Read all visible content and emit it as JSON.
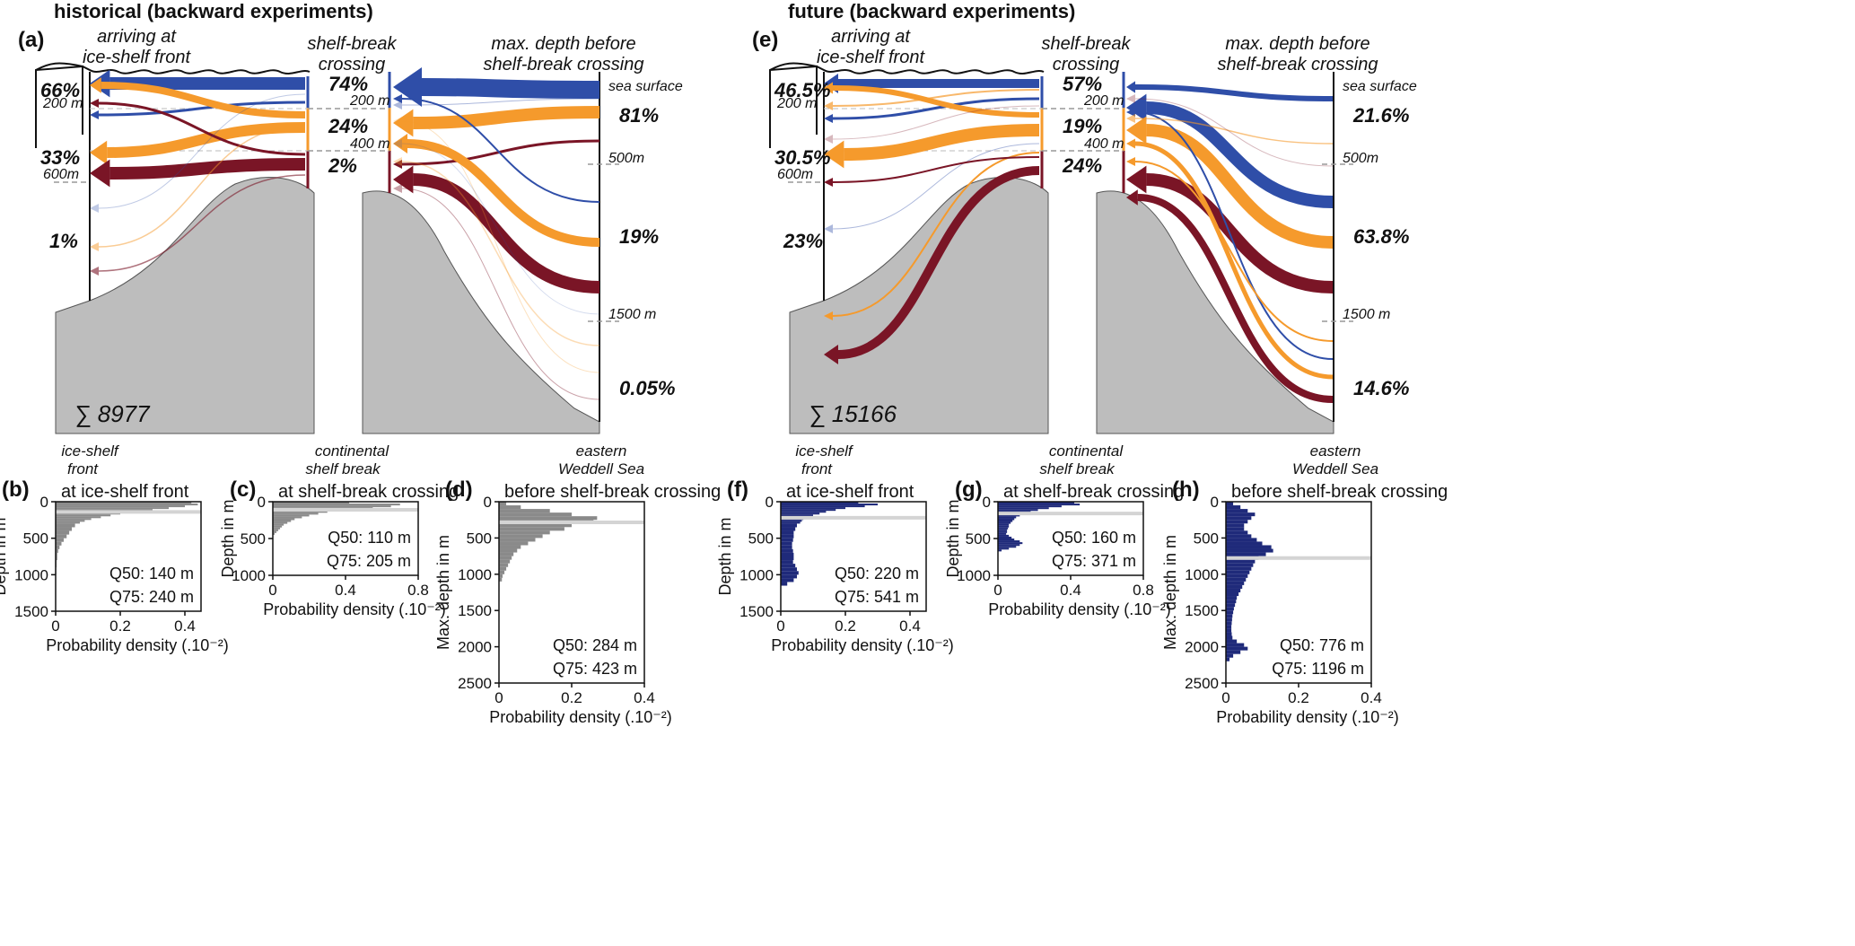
{
  "figure": {
    "columns": [
      {
        "title": "historical (backward experiments)",
        "schematic": {
          "label": "(a)",
          "headers": {
            "front": [
              "arriving at",
              "ice-shelf front"
            ],
            "break": [
              "shelf-break",
              "crossing"
            ],
            "max": [
              "max. depth before",
              "shelf-break crossing"
            ]
          },
          "front_pcts": [
            "66%",
            "33%",
            "1%"
          ],
          "break_pcts": [
            "74%",
            "24%",
            "2%"
          ],
          "max_pcts": [
            "81%",
            "19%",
            "0.05%"
          ],
          "front_depths": [
            "200 m",
            "600m"
          ],
          "break_depths": [
            "200 m",
            "400 m"
          ],
          "max_depths": [
            "sea surface",
            "500m",
            "1500 m"
          ],
          "sum": "∑ 8977",
          "locations": {
            "front": [
              "ice-shelf",
              "front"
            ],
            "break": [
              "continental",
              "shelf break"
            ],
            "sea": [
              "eastern",
              "Weddell Sea"
            ]
          }
        }
      },
      {
        "title": "future (backward experiments)",
        "schematic": {
          "label": "(e)",
          "headers": {
            "front": [
              "arriving at",
              "ice-shelf front"
            ],
            "break": [
              "shelf-break",
              "crossing"
            ],
            "max": [
              "max. depth before",
              "shelf-break crossing"
            ]
          },
          "front_pcts": [
            "46.5%",
            "30.5%",
            "23%"
          ],
          "break_pcts": [
            "57%",
            "19%",
            "24%"
          ],
          "max_pcts": [
            "21.6%",
            "63.8%",
            "14.6%"
          ],
          "front_depths": [
            "200 m",
            "600m"
          ],
          "break_depths": [
            "200 m",
            "400 m"
          ],
          "max_depths": [
            "sea surface",
            "500m",
            "1500 m"
          ],
          "sum": "∑ 15166",
          "locations": {
            "front": [
              "ice-shelf",
              "front"
            ],
            "break": [
              "continental",
              "shelf break"
            ],
            "sea": [
              "eastern",
              "Weddell Sea"
            ]
          }
        }
      }
    ],
    "colors": {
      "blue": "#2f4ea8",
      "orange": "#f59a2c",
      "darkred": "#7a1526",
      "topo": "#bdbdbd",
      "hist_gray": "#8a8a8a",
      "hist_navy": "#1f2a7a",
      "median_line": "#d4d4d4"
    }
  },
  "chart_data": [
    {
      "type": "bar",
      "orientation": "horizontal",
      "label": "(b)",
      "title": "at ice-shelf front",
      "ylabel": "Depth in m",
      "xlabel": "Probability density (.10⁻²)",
      "ylim": [
        0,
        1500
      ],
      "xlim": [
        0,
        0.45
      ],
      "yticks": [
        0,
        500,
        1000,
        1500
      ],
      "xticks": [
        0,
        0.2,
        0.4
      ],
      "q50": "Q50: 140 m",
      "q75": "Q75: 240 m",
      "median": 140,
      "color": "hist_gray",
      "bins": [
        [
          0,
          25,
          0.42
        ],
        [
          25,
          50,
          0.44
        ],
        [
          50,
          75,
          0.4
        ],
        [
          75,
          100,
          0.35
        ],
        [
          100,
          125,
          0.3
        ],
        [
          125,
          150,
          0.24
        ],
        [
          150,
          175,
          0.2
        ],
        [
          175,
          200,
          0.17
        ],
        [
          200,
          225,
          0.14
        ],
        [
          225,
          250,
          0.11
        ],
        [
          250,
          275,
          0.09
        ],
        [
          275,
          300,
          0.075
        ],
        [
          300,
          350,
          0.06
        ],
        [
          350,
          400,
          0.05
        ],
        [
          400,
          450,
          0.042
        ],
        [
          450,
          500,
          0.034
        ],
        [
          500,
          550,
          0.025
        ],
        [
          550,
          600,
          0.018
        ],
        [
          600,
          650,
          0.012
        ],
        [
          650,
          700,
          0.008
        ],
        [
          700,
          800,
          0.005
        ],
        [
          800,
          900,
          0.003
        ],
        [
          900,
          1000,
          0.002
        ]
      ]
    },
    {
      "type": "bar",
      "orientation": "horizontal",
      "label": "(c)",
      "title": "at shelf-break crossing",
      "ylabel": "Depth in m",
      "xlabel": "Probability density (.10⁻²)",
      "ylim": [
        0,
        1000
      ],
      "xlim": [
        0,
        0.8
      ],
      "yticks": [
        0,
        500,
        1000
      ],
      "xticks": [
        0,
        0.4,
        0.8
      ],
      "q50": "Q50: 110 m",
      "q75": "Q75: 205 m",
      "median": 110,
      "color": "hist_gray",
      "bins": [
        [
          0,
          25,
          0.42
        ],
        [
          25,
          50,
          0.7
        ],
        [
          50,
          75,
          0.65
        ],
        [
          75,
          100,
          0.55
        ],
        [
          100,
          125,
          0.4
        ],
        [
          125,
          150,
          0.3
        ],
        [
          150,
          175,
          0.25
        ],
        [
          175,
          200,
          0.2
        ],
        [
          200,
          225,
          0.16
        ],
        [
          225,
          250,
          0.12
        ],
        [
          250,
          275,
          0.1
        ],
        [
          275,
          300,
          0.08
        ],
        [
          300,
          325,
          0.06
        ],
        [
          325,
          350,
          0.05
        ],
        [
          350,
          375,
          0.04
        ],
        [
          375,
          400,
          0.03
        ],
        [
          400,
          425,
          0.02
        ],
        [
          425,
          450,
          0.01
        ]
      ]
    },
    {
      "type": "bar",
      "orientation": "horizontal",
      "label": "(d)",
      "title": "before shelf-break crossing",
      "ylabel": "Max. depth in m",
      "xlabel": "Probability density (.10⁻²)",
      "ylim": [
        0,
        2500
      ],
      "xlim": [
        0,
        0.4
      ],
      "yticks": [
        0,
        500,
        1000,
        1500,
        2000,
        2500
      ],
      "xticks": [
        0,
        0.2,
        0.4
      ],
      "q50": "Q50: 284 m",
      "q75": "Q75: 423 m",
      "median": 284,
      "color": "hist_gray",
      "bins": [
        [
          0,
          50,
          0.02
        ],
        [
          50,
          100,
          0.06
        ],
        [
          100,
          150,
          0.14
        ],
        [
          150,
          200,
          0.2
        ],
        [
          200,
          250,
          0.27
        ],
        [
          250,
          300,
          0.26
        ],
        [
          300,
          350,
          0.2
        ],
        [
          350,
          400,
          0.18
        ],
        [
          400,
          450,
          0.14
        ],
        [
          450,
          500,
          0.12
        ],
        [
          500,
          550,
          0.1
        ],
        [
          550,
          600,
          0.08
        ],
        [
          600,
          650,
          0.06
        ],
        [
          650,
          700,
          0.05
        ],
        [
          700,
          750,
          0.04
        ],
        [
          750,
          800,
          0.035
        ],
        [
          800,
          850,
          0.03
        ],
        [
          850,
          900,
          0.025
        ],
        [
          900,
          950,
          0.02
        ],
        [
          950,
          1000,
          0.015
        ],
        [
          1000,
          1050,
          0.01
        ],
        [
          1050,
          1100,
          0.008
        ]
      ]
    },
    {
      "type": "bar",
      "orientation": "horizontal",
      "label": "(f)",
      "title": "at ice-shelf front",
      "ylabel": "Depth in m",
      "xlabel": "Probability density (.10⁻²)",
      "ylim": [
        0,
        1500
      ],
      "xlim": [
        0,
        0.45
      ],
      "yticks": [
        0,
        500,
        1000,
        1500
      ],
      "xticks": [
        0,
        0.2,
        0.4
      ],
      "q50": "Q50: 220 m",
      "q75": "Q75: 541 m",
      "median": 220,
      "color": "hist_navy",
      "bins": [
        [
          0,
          25,
          0.24
        ],
        [
          25,
          50,
          0.3
        ],
        [
          50,
          75,
          0.26
        ],
        [
          75,
          100,
          0.2
        ],
        [
          100,
          125,
          0.17
        ],
        [
          125,
          150,
          0.14
        ],
        [
          150,
          175,
          0.12
        ],
        [
          175,
          200,
          0.1
        ],
        [
          200,
          225,
          0.08
        ],
        [
          225,
          250,
          0.07
        ],
        [
          250,
          275,
          0.065
        ],
        [
          275,
          300,
          0.06
        ],
        [
          300,
          350,
          0.05
        ],
        [
          350,
          400,
          0.045
        ],
        [
          400,
          450,
          0.04
        ],
        [
          450,
          500,
          0.04
        ],
        [
          500,
          550,
          0.038
        ],
        [
          550,
          600,
          0.035
        ],
        [
          600,
          650,
          0.035
        ],
        [
          650,
          700,
          0.038
        ],
        [
          700,
          750,
          0.04
        ],
        [
          750,
          800,
          0.04
        ],
        [
          800,
          850,
          0.038
        ],
        [
          850,
          900,
          0.045
        ],
        [
          900,
          950,
          0.05
        ],
        [
          950,
          1000,
          0.055
        ],
        [
          1000,
          1050,
          0.05
        ],
        [
          1050,
          1100,
          0.04
        ],
        [
          1100,
          1150,
          0.02
        ]
      ]
    },
    {
      "type": "bar",
      "orientation": "horizontal",
      "label": "(g)",
      "title": "at shelf-break crossing",
      "ylabel": "Depth in m",
      "xlabel": "Probability density (.10⁻²)",
      "ylim": [
        0,
        1000
      ],
      "xlim": [
        0,
        0.8
      ],
      "yticks": [
        0,
        500,
        1000
      ],
      "xticks": [
        0,
        0.4,
        0.8
      ],
      "q50": "Q50: 160 m",
      "q75": "Q75: 371 m",
      "median": 160,
      "color": "hist_navy",
      "bins": [
        [
          0,
          25,
          0.42
        ],
        [
          25,
          50,
          0.45
        ],
        [
          50,
          75,
          0.35
        ],
        [
          75,
          100,
          0.28
        ],
        [
          100,
          125,
          0.22
        ],
        [
          125,
          150,
          0.18
        ],
        [
          150,
          175,
          0.14
        ],
        [
          175,
          200,
          0.12
        ],
        [
          200,
          225,
          0.1
        ],
        [
          225,
          250,
          0.09
        ],
        [
          250,
          275,
          0.08
        ],
        [
          275,
          300,
          0.07
        ],
        [
          300,
          325,
          0.06
        ],
        [
          325,
          350,
          0.06
        ],
        [
          350,
          375,
          0.055
        ],
        [
          375,
          400,
          0.05
        ],
        [
          400,
          425,
          0.05
        ],
        [
          425,
          450,
          0.045
        ],
        [
          450,
          475,
          0.06
        ],
        [
          475,
          500,
          0.075
        ],
        [
          500,
          525,
          0.09
        ],
        [
          525,
          550,
          0.12
        ],
        [
          550,
          575,
          0.135
        ],
        [
          575,
          600,
          0.12
        ],
        [
          600,
          625,
          0.1
        ],
        [
          625,
          650,
          0.06
        ],
        [
          650,
          675,
          0.02
        ]
      ]
    },
    {
      "type": "bar",
      "orientation": "horizontal",
      "label": "(h)",
      "title": "before shelf-break crossing",
      "ylabel": "Max. depth in m",
      "xlabel": "Probability density (.10⁻²)",
      "ylim": [
        0,
        2500
      ],
      "xlim": [
        0,
        0.4
      ],
      "yticks": [
        0,
        500,
        1000,
        1500,
        2000,
        2500
      ],
      "xticks": [
        0,
        0.2,
        0.4
      ],
      "q50": "Q50: 776 m",
      "q75": "Q75: 1196 m",
      "median": 776,
      "color": "hist_navy",
      "bins": [
        [
          0,
          50,
          0.02
        ],
        [
          50,
          100,
          0.04
        ],
        [
          100,
          150,
          0.06
        ],
        [
          150,
          200,
          0.08
        ],
        [
          200,
          250,
          0.07
        ],
        [
          250,
          300,
          0.06
        ],
        [
          300,
          350,
          0.05
        ],
        [
          350,
          400,
          0.05
        ],
        [
          400,
          450,
          0.06
        ],
        [
          450,
          500,
          0.07
        ],
        [
          500,
          550,
          0.085
        ],
        [
          550,
          600,
          0.1
        ],
        [
          600,
          650,
          0.125
        ],
        [
          650,
          700,
          0.13
        ],
        [
          700,
          750,
          0.11
        ],
        [
          750,
          800,
          0.09
        ],
        [
          800,
          850,
          0.08
        ],
        [
          850,
          900,
          0.075
        ],
        [
          900,
          950,
          0.07
        ],
        [
          950,
          1000,
          0.065
        ],
        [
          1000,
          1050,
          0.06
        ],
        [
          1050,
          1100,
          0.055
        ],
        [
          1100,
          1150,
          0.05
        ],
        [
          1150,
          1200,
          0.045
        ],
        [
          1200,
          1250,
          0.04
        ],
        [
          1250,
          1300,
          0.035
        ],
        [
          1300,
          1350,
          0.03
        ],
        [
          1350,
          1400,
          0.028
        ],
        [
          1400,
          1450,
          0.025
        ],
        [
          1450,
          1500,
          0.022
        ],
        [
          1500,
          1550,
          0.02
        ],
        [
          1550,
          1600,
          0.018
        ],
        [
          1600,
          1650,
          0.017
        ],
        [
          1650,
          1700,
          0.016
        ],
        [
          1700,
          1750,
          0.015
        ],
        [
          1750,
          1800,
          0.015
        ],
        [
          1800,
          1850,
          0.016
        ],
        [
          1850,
          1900,
          0.018
        ],
        [
          1900,
          1950,
          0.03
        ],
        [
          1950,
          2000,
          0.05
        ],
        [
          2000,
          2050,
          0.06
        ],
        [
          2050,
          2100,
          0.04
        ],
        [
          2100,
          2150,
          0.02
        ],
        [
          2150,
          2200,
          0.01
        ]
      ]
    }
  ]
}
